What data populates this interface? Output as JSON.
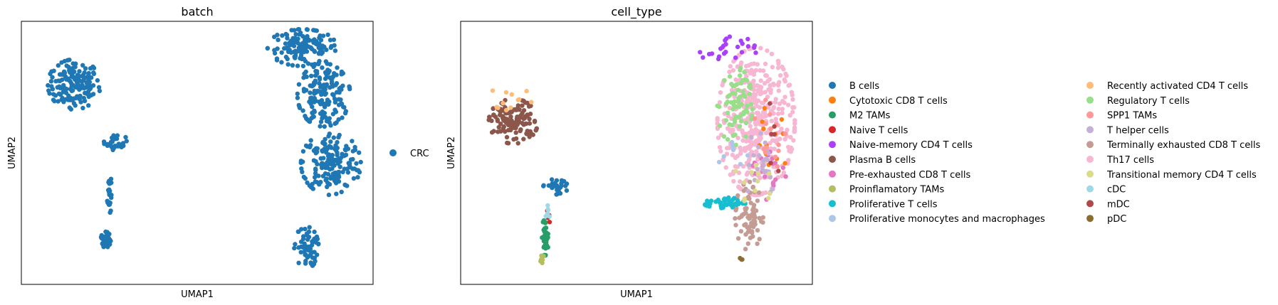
{
  "chart_data": [
    {
      "type": "scatter",
      "title": "batch",
      "xlabel": "UMAP1",
      "ylabel": "UMAP2",
      "xlim": [
        0,
        10
      ],
      "ylim": [
        0,
        10
      ],
      "grid": false,
      "legend_position": "right",
      "legend": [
        {
          "name": "CRC",
          "color": "#1f77b4"
        }
      ],
      "clusters": [
        {
          "name": "CRC",
          "x": 1.5,
          "y": 7.6,
          "rx": 0.75,
          "ry": 0.95,
          "count": 160
        },
        {
          "name": "CRC",
          "x": 2.4,
          "y": 1.7,
          "rx": 0.14,
          "ry": 0.3,
          "count": 45
        },
        {
          "name": "CRC",
          "x": 2.5,
          "y": 3.5,
          "rx": 0.06,
          "ry": 1.0,
          "count": 25
        },
        {
          "name": "CRC",
          "x": 2.7,
          "y": 5.4,
          "rx": 0.35,
          "ry": 0.3,
          "count": 30
        },
        {
          "name": "CRC",
          "x": 8.0,
          "y": 9.0,
          "rx": 1.0,
          "ry": 0.7,
          "count": 140
        },
        {
          "name": "CRC",
          "x": 8.6,
          "y": 7.2,
          "rx": 0.75,
          "ry": 1.2,
          "count": 170
        },
        {
          "name": "CRC",
          "x": 8.8,
          "y": 4.6,
          "rx": 0.85,
          "ry": 1.2,
          "count": 180
        },
        {
          "name": "CRC",
          "x": 8.1,
          "y": 1.4,
          "rx": 0.35,
          "ry": 0.8,
          "count": 60
        }
      ]
    },
    {
      "type": "scatter",
      "title": "cell_type",
      "xlabel": "UMAP1",
      "ylabel": "UMAP2",
      "xlim": [
        0,
        10
      ],
      "ylim": [
        0,
        10
      ],
      "grid": false,
      "legend_position": "right",
      "legend": [
        {
          "name": "B cells",
          "color": "#1f77b4"
        },
        {
          "name": "Cytotoxic CD8 T cells",
          "color": "#ff7f0e"
        },
        {
          "name": "M2 TAMs",
          "color": "#279e68"
        },
        {
          "name": "Naive T cells",
          "color": "#d62728"
        },
        {
          "name": "Naive-memory CD4 T cells",
          "color": "#aa40fc"
        },
        {
          "name": "Plasma B cells",
          "color": "#8c564b"
        },
        {
          "name": "Pre-exhausted CD8 T cells",
          "color": "#e377c2"
        },
        {
          "name": "Proinflamatory TAMs",
          "color": "#b5bd61"
        },
        {
          "name": "Proliferative T cells",
          "color": "#17becf"
        },
        {
          "name": "Proliferative monocytes and macrophages",
          "color": "#aec7e8"
        },
        {
          "name": "Recently activated CD4 T cells",
          "color": "#ffbb78"
        },
        {
          "name": "Regulatory T cells",
          "color": "#98df8a"
        },
        {
          "name": "SPP1 TAMs",
          "color": "#ff9896"
        },
        {
          "name": "T helper cells",
          "color": "#c5b0d5"
        },
        {
          "name": "Terminally exhausted CD8 T cells",
          "color": "#c49c94"
        },
        {
          "name": "Th17 cells",
          "color": "#f7b6d2"
        },
        {
          "name": "Transitional memory CD4 T cells",
          "color": "#dbdb8d"
        },
        {
          "name": "cDC",
          "color": "#9edae5"
        },
        {
          "name": "mDC",
          "color": "#ad494a"
        },
        {
          "name": "pDC",
          "color": "#8c6d31"
        }
      ],
      "clusters": [
        {
          "name": "Plasma B cells",
          "x": 1.5,
          "y": 6.2,
          "rx": 0.7,
          "ry": 0.85,
          "count": 130
        },
        {
          "name": "Recently activated CD4 T cells",
          "x": 1.5,
          "y": 7.1,
          "rx": 0.7,
          "ry": 0.5,
          "count": 12
        },
        {
          "name": "B cells",
          "x": 2.7,
          "y": 3.7,
          "rx": 0.35,
          "ry": 0.3,
          "count": 30
        },
        {
          "name": "M2 TAMs",
          "x": 2.4,
          "y": 1.8,
          "rx": 0.1,
          "ry": 0.7,
          "count": 45
        },
        {
          "name": "Naive T cells",
          "x": 2.5,
          "y": 2.6,
          "rx": 0.05,
          "ry": 0.3,
          "count": 5
        },
        {
          "name": "Proinflamatory TAMs",
          "x": 2.3,
          "y": 0.9,
          "rx": 0.1,
          "ry": 0.25,
          "count": 6
        },
        {
          "name": "cDC",
          "x": 2.5,
          "y": 2.7,
          "rx": 0.08,
          "ry": 0.5,
          "count": 6
        },
        {
          "name": "Th17 cells",
          "x": 8.4,
          "y": 6.2,
          "rx": 1.1,
          "ry": 2.8,
          "count": 420
        },
        {
          "name": "Regulatory T cells",
          "x": 7.8,
          "y": 6.8,
          "rx": 0.5,
          "ry": 1.5,
          "count": 70
        },
        {
          "name": "Naive-memory CD4 T cells",
          "x": 7.6,
          "y": 8.9,
          "rx": 0.8,
          "ry": 0.6,
          "count": 25
        },
        {
          "name": "Terminally exhausted CD8 T cells",
          "x": 8.2,
          "y": 2.6,
          "rx": 0.4,
          "ry": 1.3,
          "count": 70
        },
        {
          "name": "Proliferative T cells",
          "x": 7.5,
          "y": 3.1,
          "rx": 0.6,
          "ry": 0.2,
          "count": 45
        },
        {
          "name": "Pre-exhausted CD8 T cells",
          "x": 8.8,
          "y": 4.3,
          "rx": 0.5,
          "ry": 1.1,
          "count": 18
        },
        {
          "name": "Cytotoxic CD8 T cells",
          "x": 8.9,
          "y": 5.6,
          "rx": 0.5,
          "ry": 2.0,
          "count": 12
        },
        {
          "name": "T helper cells",
          "x": 8.5,
          "y": 4.8,
          "rx": 0.6,
          "ry": 1.5,
          "count": 25
        },
        {
          "name": "SPP1 TAMs",
          "x": 8.8,
          "y": 5.5,
          "rx": 0.5,
          "ry": 1.8,
          "count": 15
        },
        {
          "name": "Transitional memory CD4 T cells",
          "x": 8.4,
          "y": 4.0,
          "rx": 0.6,
          "ry": 1.2,
          "count": 12
        },
        {
          "name": "mDC",
          "x": 9.0,
          "y": 5.8,
          "rx": 0.3,
          "ry": 1.5,
          "count": 6
        },
        {
          "name": "Proliferative monocytes and macrophages",
          "x": 7.8,
          "y": 4.8,
          "rx": 0.5,
          "ry": 0.8,
          "count": 8
        },
        {
          "name": "pDC",
          "x": 8.0,
          "y": 1.0,
          "rx": 0.2,
          "ry": 0.2,
          "count": 3
        }
      ]
    }
  ]
}
